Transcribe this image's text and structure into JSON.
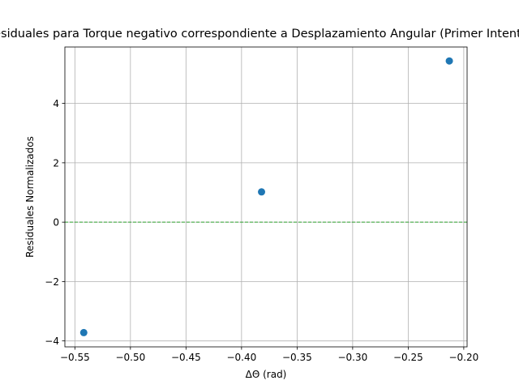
{
  "chart_data": {
    "type": "scatter",
    "title": "Residuales para Torque negativo correspondiente a Desplazamiento Angular (Primer Intento)",
    "xlabel": "ΔΘ (rad)",
    "ylabel": "Residuales Normalizados",
    "xlim": [
      -0.559,
      -0.197
    ],
    "ylim": [
      -4.2,
      5.9
    ],
    "x_ticks": [
      -0.55,
      -0.5,
      -0.45,
      -0.4,
      -0.35,
      -0.3,
      -0.25,
      -0.2
    ],
    "x_tick_labels": [
      "−0.55",
      "−0.50",
      "−0.45",
      "−0.40",
      "−0.35",
      "−0.30",
      "−0.25",
      "−0.20"
    ],
    "y_ticks": [
      -4,
      -2,
      0,
      2,
      4
    ],
    "y_tick_labels": [
      "−4",
      "−2",
      "0",
      "2",
      "4"
    ],
    "grid": true,
    "reference_line": {
      "y": 0,
      "style": "dashed",
      "color": "#2ca02c"
    },
    "marker_color": "#1f77b4",
    "points": [
      {
        "x": -0.542,
        "y": -3.72
      },
      {
        "x": -0.382,
        "y": 1.02
      },
      {
        "x": -0.213,
        "y": 5.43
      }
    ]
  }
}
